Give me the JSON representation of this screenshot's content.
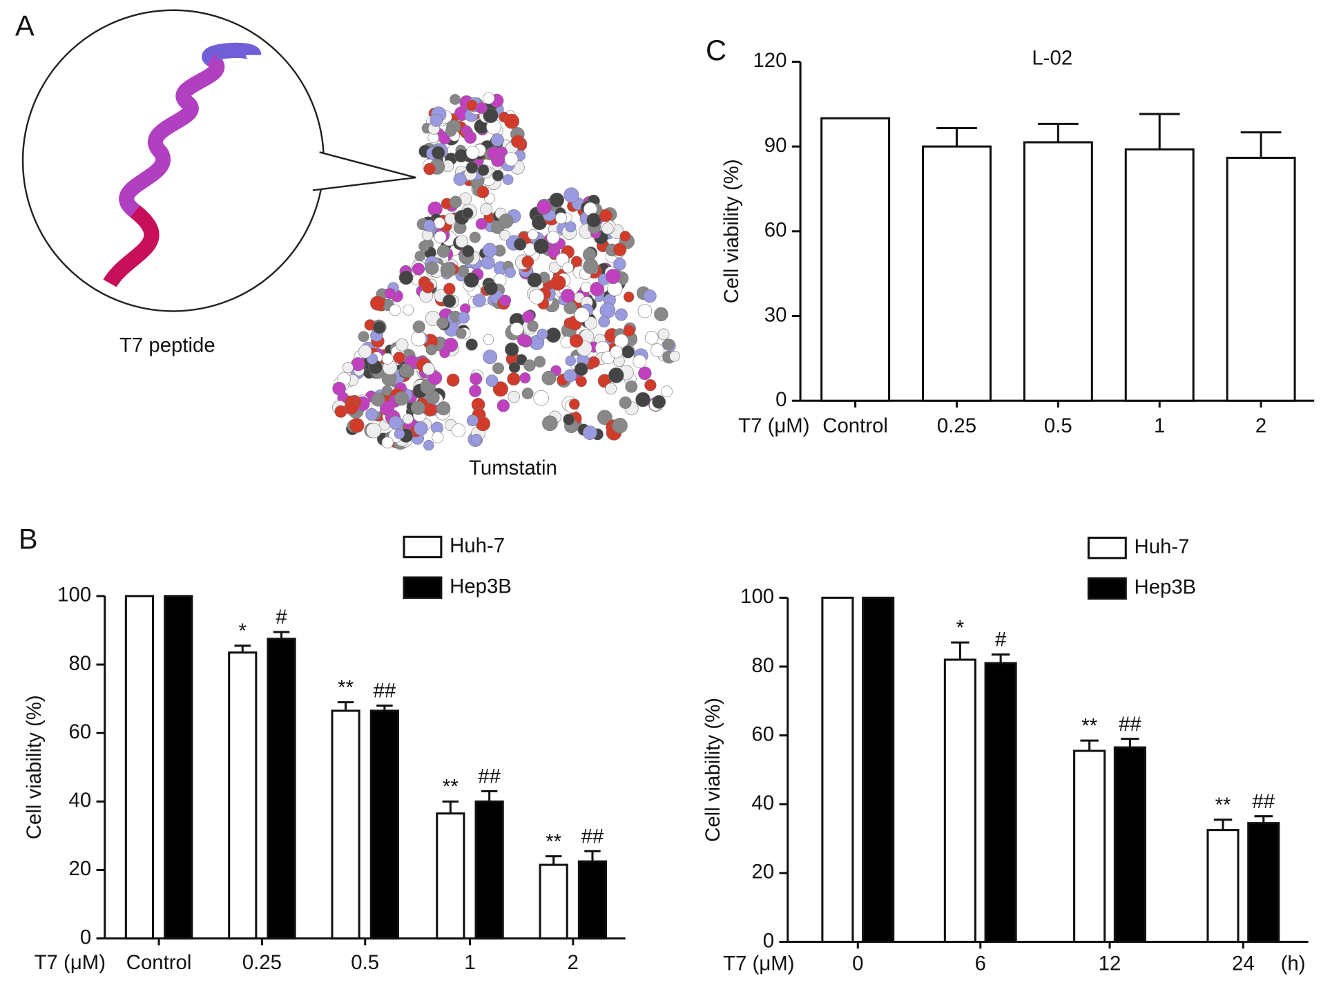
{
  "panel_a": {
    "label": "A",
    "captions": [
      "T7 peptide",
      "Tumstatin"
    ]
  },
  "chart_data": [
    {
      "type": "bar",
      "label": "B",
      "x_label": "T7 (μM)",
      "y_label": "Cell viability (%)",
      "categories": [
        "Control",
        "0.25",
        "0.5",
        "1",
        "2"
      ],
      "series": [
        {
          "name": "Huh-7",
          "color": "#ffffff",
          "values": [
            100,
            83.5,
            66.5,
            36.5,
            21.5
          ],
          "errors": [
            null,
            2,
            2.5,
            3.5,
            2.5
          ],
          "annotations": [
            null,
            "*",
            "**",
            "**",
            "**"
          ]
        },
        {
          "name": "Hep3B",
          "color": "#000000",
          "values": [
            100,
            87.5,
            66.5,
            40,
            22.5
          ],
          "errors": [
            null,
            2,
            1.5,
            3,
            3
          ],
          "annotations": [
            null,
            "#",
            "##",
            "##",
            "##"
          ]
        }
      ],
      "ylim": [
        0,
        100
      ],
      "yticks": [
        0,
        20,
        40,
        60,
        80,
        100
      ]
    },
    {
      "type": "bar",
      "x_label": "T7 (μM)",
      "x_unit": "(h)",
      "y_label": "Cell viability (%)",
      "categories": [
        "0",
        "6",
        "12",
        "24"
      ],
      "series": [
        {
          "name": "Huh-7",
          "color": "#ffffff",
          "values": [
            100,
            82,
            55.5,
            32.5
          ],
          "errors": [
            null,
            5,
            3,
            3
          ],
          "annotations": [
            null,
            "*",
            "**",
            "**"
          ]
        },
        {
          "name": "Hep3B",
          "color": "#000000",
          "values": [
            100,
            81,
            56.5,
            34.5
          ],
          "errors": [
            null,
            2.5,
            2.5,
            2
          ],
          "annotations": [
            null,
            "#",
            "##",
            "##"
          ]
        }
      ],
      "ylim": [
        0,
        100
      ],
      "yticks": [
        0,
        20,
        40,
        60,
        80,
        100
      ]
    },
    {
      "type": "bar",
      "label": "C",
      "title": "L-02",
      "x_label": "T7 (μM)",
      "y_label": "Cell viability (%)",
      "categories": [
        "Control",
        "0.25",
        "0.5",
        "1",
        "2"
      ],
      "series": [
        {
          "color": "#ffffff",
          "values": [
            100,
            90,
            91.5,
            89,
            86
          ],
          "errors": [
            null,
            6.5,
            6.5,
            12.5,
            9
          ]
        }
      ],
      "ylim": [
        0,
        120
      ],
      "yticks": [
        0,
        30,
        60,
        90,
        120
      ]
    }
  ]
}
